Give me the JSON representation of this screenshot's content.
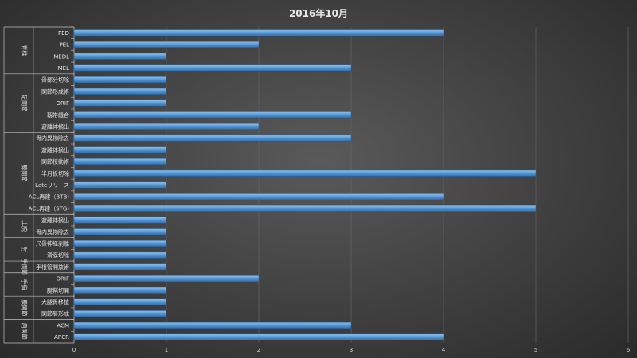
{
  "chart_data": {
    "type": "bar",
    "orientation": "horizontal",
    "title": "2016年10月",
    "xlabel": "",
    "ylabel": "",
    "xlim": [
      0,
      6
    ],
    "x_ticks": [
      "0",
      "1",
      "2",
      "3",
      "4",
      "5",
      "6"
    ],
    "grid": true,
    "bar_color": "#5b9bd5",
    "groups": [
      {
        "label": "脊椎",
        "items": [
          {
            "label": "PED",
            "value": 4
          },
          {
            "label": "PEL",
            "value": 2
          },
          {
            "label": "MEDL",
            "value": 1
          },
          {
            "label": "MEL",
            "value": 3
          }
        ]
      },
      {
        "label": "足関節",
        "items": [
          {
            "label": "骨部分切除",
            "value": 1
          },
          {
            "label": "関節形成術",
            "value": 1
          },
          {
            "label": "ORIF",
            "value": 1
          },
          {
            "label": "靱帯縫合",
            "value": 3
          },
          {
            "label": "遊離体摘出",
            "value": 2
          }
        ]
      },
      {
        "label": "膝関節",
        "items": [
          {
            "label": "骨内異物除去",
            "value": 3
          },
          {
            "label": "遊離体摘出",
            "value": 1
          },
          {
            "label": "関節授動術",
            "value": 1
          },
          {
            "label": "半月板切除",
            "value": 5
          },
          {
            "label": "Lateリリース",
            "value": 1
          },
          {
            "label": "ACL再建（BTB)",
            "value": 4
          },
          {
            "label": "ACL再建（STG)",
            "value": 5
          }
        ]
      },
      {
        "label": "上腕",
        "items": [
          {
            "label": "遊離体摘出",
            "value": 1
          },
          {
            "label": "骨内異物除去",
            "value": 1
          }
        ]
      },
      {
        "label": "肘",
        "items": [
          {
            "label": "尺骨神経剥離",
            "value": 1
          },
          {
            "label": "滑膜切除",
            "value": 1
          }
        ]
      },
      {
        "label": "手関節",
        "items": [
          {
            "label": "手根管開放術",
            "value": 1
          }
        ]
      },
      {
        "label": "手指",
        "items": [
          {
            "label": "ORIF",
            "value": 2
          },
          {
            "label": "腱鞘切開",
            "value": 1
          }
        ]
      },
      {
        "label": "股関節",
        "items": [
          {
            "label": "大腿骨移植",
            "value": 1
          },
          {
            "label": "関節唇形成",
            "value": 1
          }
        ]
      },
      {
        "label": "肩関節",
        "items": [
          {
            "label": "ACM",
            "value": 3
          },
          {
            "label": "ARCR",
            "value": 4
          }
        ]
      }
    ]
  }
}
